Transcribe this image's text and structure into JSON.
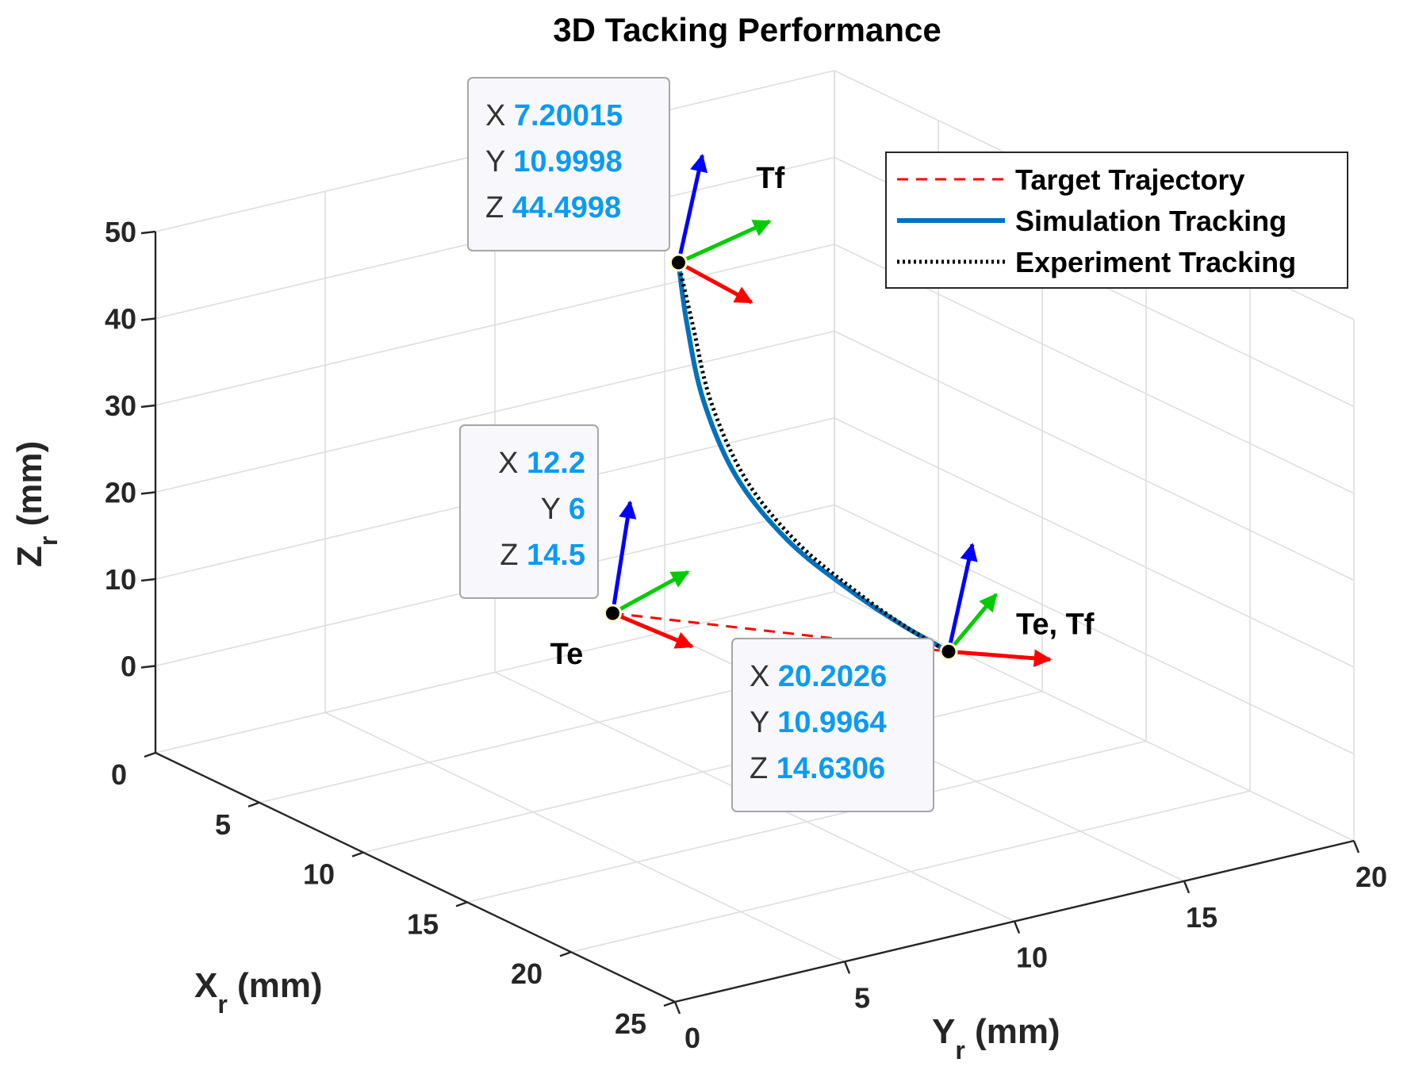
{
  "chart_data": {
    "type": "line3d",
    "title": "3D Tacking Performance",
    "xlabel": "X",
    "xlabel_sub": "r",
    "xlabel_unit": " (mm)",
    "ylabel": "Y",
    "ylabel_sub": "r",
    "ylabel_unit": " (mm)",
    "zlabel": "Z",
    "zlabel_sub": "r",
    "zlabel_unit": " (mm)",
    "xlim": [
      0,
      25
    ],
    "ylim": [
      0,
      20
    ],
    "zlim": [
      -10,
      50
    ],
    "xticks": [
      "0",
      "5",
      "10",
      "15",
      "20",
      "25"
    ],
    "yticks": [
      "0",
      "5",
      "10",
      "15",
      "20"
    ],
    "zticks": [
      "0",
      "10",
      "20",
      "30",
      "40",
      "50"
    ],
    "grid": true,
    "legend_position": "top-right",
    "series": [
      {
        "name": "Target Trajectory",
        "style": "dashed",
        "color": "#ff0000",
        "points": [
          [
            12.2,
            6,
            14.5
          ],
          [
            20.2026,
            10.9964,
            14.6306
          ]
        ]
      },
      {
        "name": "Simulation Tracking",
        "style": "solid",
        "color": "#0072bd",
        "points": [
          [
            7.2,
            11.0,
            44.5
          ],
          [
            7.6,
            11.0,
            38.0
          ],
          [
            8.4,
            11.0,
            30.0
          ],
          [
            10.0,
            11.0,
            23.0
          ],
          [
            12.5,
            11.0,
            18.5
          ],
          [
            15.5,
            11.0,
            16.2
          ],
          [
            18.0,
            11.0,
            15.1
          ],
          [
            20.2,
            11.0,
            14.63
          ]
        ]
      },
      {
        "name": "Experiment Tracking",
        "style": "dotted",
        "color": "#000000",
        "points": [
          [
            7.2,
            11.0,
            44.5
          ],
          [
            7.8,
            11.05,
            38.0
          ],
          [
            8.7,
            11.05,
            30.0
          ],
          [
            10.4,
            11.05,
            23.0
          ],
          [
            12.9,
            11.05,
            18.6
          ],
          [
            15.8,
            11.05,
            16.2
          ],
          [
            18.2,
            11.0,
            15.1
          ],
          [
            20.2,
            11.0,
            14.63
          ]
        ]
      }
    ],
    "frames": [
      {
        "label": "Tf",
        "position": [
          7.20015,
          10.9998,
          44.4998
        ]
      },
      {
        "label": "Te",
        "position": [
          12.2,
          6,
          14.5
        ]
      },
      {
        "label": "Te, Tf",
        "position": [
          20.2026,
          10.9964,
          14.6306
        ]
      }
    ],
    "datatips": [
      {
        "x_key": "X",
        "x_val": "7.20015",
        "y_key": "Y",
        "y_val": "10.9998",
        "z_key": "Z",
        "z_val": "44.4998"
      },
      {
        "x_key": "X",
        "x_val": "12.2",
        "y_key": "Y",
        "y_val": "6",
        "z_key": "Z",
        "z_val": "14.5"
      },
      {
        "x_key": "X",
        "x_val": "20.2026",
        "y_key": "Y",
        "y_val": "10.9964",
        "z_key": "Z",
        "z_val": "14.6306"
      }
    ],
    "colors": {
      "target": "#ff0000",
      "simulation": "#0072bd",
      "experiment": "#000000",
      "frame_x_axis": "#ff0000",
      "frame_y_axis": "#00cc00",
      "frame_z_axis": "#0000ff",
      "datatip_value": "#0a9bf2"
    }
  }
}
